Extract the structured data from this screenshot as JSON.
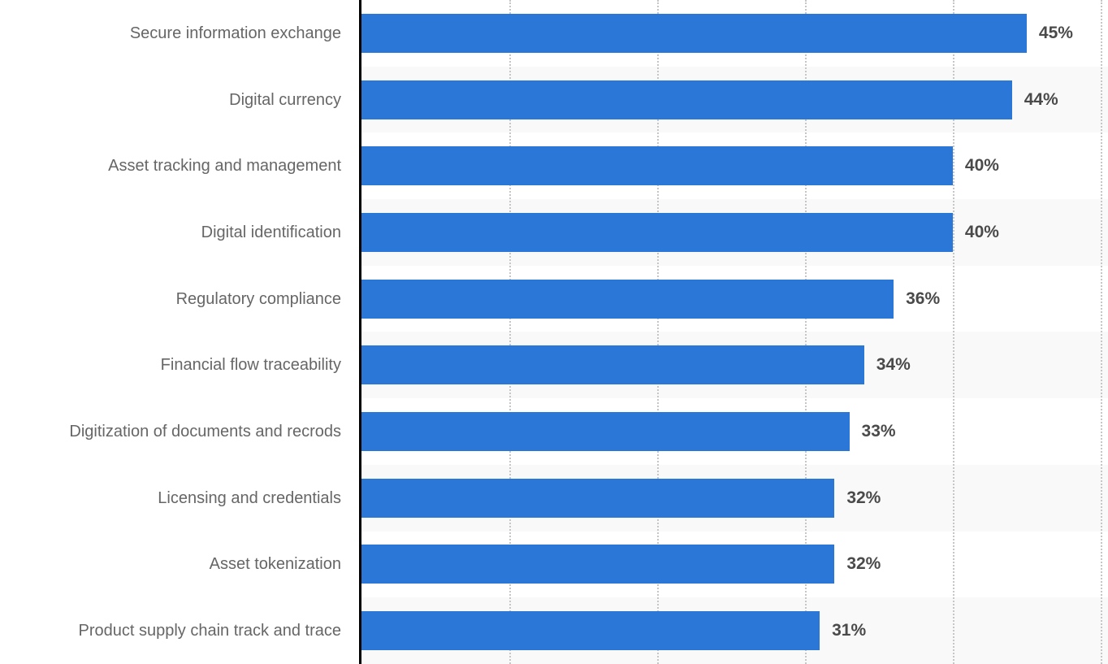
{
  "chart_data": {
    "type": "bar",
    "orientation": "horizontal",
    "title": "",
    "xlabel": "",
    "ylabel": "",
    "categories": [
      "Secure information exchange",
      "Digital currency",
      "Asset tracking and management",
      "Digital identification",
      "Regulatory compliance",
      "Financial flow traceability",
      "Digitization of documents and recrods",
      "Licensing and credentials",
      "Asset tokenization",
      "Product supply chain track and trace"
    ],
    "values": [
      45,
      44,
      40,
      40,
      36,
      34,
      33,
      32,
      32,
      31
    ],
    "value_suffix": "%",
    "xlim": [
      0,
      50.5
    ],
    "gridlines": [
      10,
      20,
      30,
      40,
      50
    ],
    "grid_on": true,
    "legend": "none",
    "colors": {
      "bar": "#2b77d8",
      "category_label": "#666666",
      "value_label": "#4a4a4a",
      "row_stripe": "#f9f9f9",
      "gridline": "#c6c6c6",
      "axis_line": "#000000"
    }
  }
}
